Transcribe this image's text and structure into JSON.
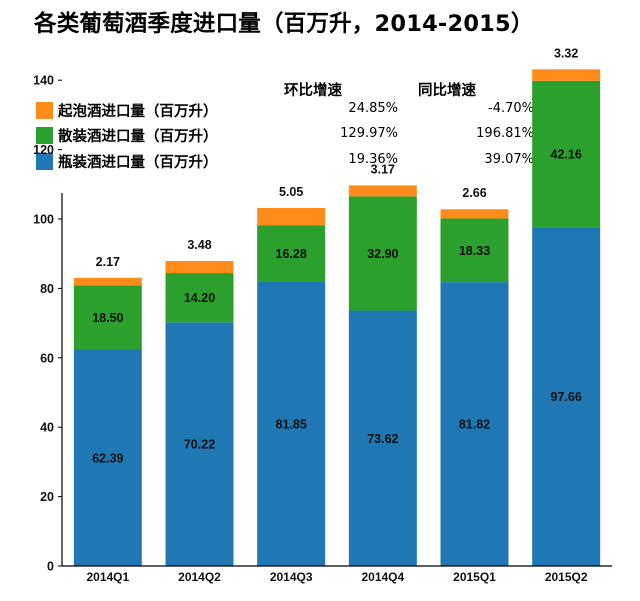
{
  "title": "各类葡萄酒季度进口量（百万升，2014-2015）",
  "legend": {
    "col_qoq": "环比增速",
    "col_yoy": "同比增速",
    "items": [
      {
        "label": "起泡酒进口量（百万升）",
        "qoq": "24.85%",
        "yoy": "-4.70%",
        "color": "#ff8c1a"
      },
      {
        "label": "散装酒进口量（百万升）",
        "qoq": "129.97%",
        "yoy": "196.81%",
        "color": "#2ca02c"
      },
      {
        "label": "瓶装酒进口量（百万升）",
        "qoq": "19.36%",
        "yoy": "39.07%",
        "color": "#1f77b4"
      }
    ]
  },
  "chart_data": {
    "type": "bar",
    "stacked": true,
    "categories": [
      "2014Q1",
      "2014Q2",
      "2014Q3",
      "2014Q4",
      "2015Q1",
      "2015Q2"
    ],
    "series": [
      {
        "name": "瓶装酒进口量（百万升）",
        "color": "#1f77b4",
        "values": [
          62.39,
          70.22,
          81.85,
          73.62,
          81.82,
          97.66
        ],
        "labels": [
          "62.39",
          "70.22",
          "81.85",
          "73.62",
          "81.82",
          "97.66"
        ]
      },
      {
        "name": "散装酒进口量（百万升）",
        "color": "#2ca02c",
        "values": [
          18.5,
          14.2,
          16.28,
          32.9,
          18.33,
          42.16
        ],
        "labels": [
          "18.50",
          "14.20",
          "16.28",
          "32.90",
          "18.33",
          "42.16"
        ]
      },
      {
        "name": "起泡酒进口量（百万升）",
        "color": "#ff8c1a",
        "values": [
          2.17,
          3.48,
          5.05,
          3.17,
          2.66,
          3.32
        ],
        "labels": [
          "2.17",
          "3.48",
          "5.05",
          "3.17",
          "2.66",
          "3.32"
        ]
      }
    ],
    "y_ticks": [
      0,
      20,
      40,
      60,
      80,
      100,
      120,
      140
    ],
    "ylim": [
      0,
      150
    ],
    "grid": false
  }
}
